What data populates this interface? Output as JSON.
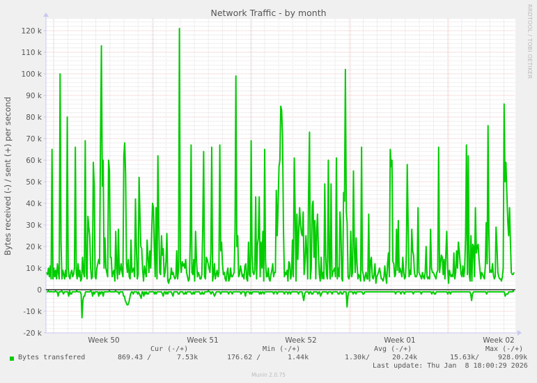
{
  "chart_data": {
    "type": "line",
    "title": "Network Traffic - by month",
    "xlabel": "",
    "ylabel": "Bytes received (-) / sent (+) per second",
    "ylim": [
      -20000,
      125000
    ],
    "yticks": [
      -20000,
      -10000,
      0,
      10000,
      20000,
      30000,
      40000,
      50000,
      60000,
      70000,
      80000,
      90000,
      100000,
      110000,
      120000
    ],
    "ytick_labels": [
      "-20 k",
      "-10 k",
      "0",
      "10 k",
      "20 k",
      "30 k",
      "40 k",
      "50 k",
      "60 k",
      "70 k",
      "80 k",
      "90 k",
      "100 k",
      "110 k",
      "120 k"
    ],
    "xtick_labels": [
      "Week 50",
      "Week 51",
      "Week 52",
      "Week 01",
      "Week 02"
    ],
    "grid": true,
    "legend_position": "bottom",
    "series": [
      {
        "name": "Bytes transfered (sent, +)",
        "color": "#00cc00",
        "values": [
          8,
          7,
          10,
          6,
          11,
          5,
          65,
          5,
          10,
          6,
          9,
          5,
          12,
          8,
          5,
          100,
          22,
          5,
          9,
          7,
          5,
          9,
          6,
          80,
          10,
          6,
          5,
          8,
          9,
          6,
          7,
          10,
          66,
          8,
          5,
          12,
          6,
          9,
          4,
          5,
          15,
          8,
          6,
          69,
          8,
          5,
          34,
          29,
          25,
          10,
          5,
          6,
          59,
          48,
          6,
          5,
          10,
          12,
          14,
          12,
          68,
          113,
          48,
          60,
          10,
          24,
          10,
          8,
          6,
          60,
          55,
          15,
          15,
          6,
          8,
          9,
          4,
          27,
          10,
          5,
          28,
          7,
          9,
          12,
          8,
          6,
          62,
          68,
          54,
          12,
          8,
          14,
          6,
          5,
          23,
          8,
          9,
          10,
          6,
          42,
          20,
          5,
          7,
          52,
          35,
          20,
          19,
          9,
          4,
          11,
          8,
          6,
          23,
          15,
          8,
          18,
          10,
          26,
          40,
          38,
          21,
          6,
          38,
          5,
          62,
          30,
          8,
          7,
          25,
          16,
          19,
          6,
          8,
          13,
          26,
          4,
          3,
          5,
          5,
          10,
          7,
          8,
          6,
          5,
          6,
          18,
          5,
          9,
          121,
          13,
          8,
          13,
          11,
          12,
          10,
          14,
          8,
          6,
          4,
          5,
          22,
          67,
          8,
          7,
          14,
          4,
          27,
          14,
          6,
          8,
          7,
          5,
          5,
          7,
          29,
          64,
          6,
          5,
          15,
          14,
          12,
          10,
          8,
          17,
          66,
          4,
          7,
          12,
          5,
          7,
          9,
          6,
          8,
          67,
          18,
          22,
          12,
          7,
          8,
          5,
          4,
          8,
          10,
          4,
          5,
          10,
          6,
          6,
          7,
          8,
          28,
          99,
          20,
          25,
          6,
          7,
          11,
          9,
          6,
          7,
          5,
          11,
          12,
          5,
          4,
          22,
          7,
          6,
          69,
          16,
          8,
          7,
          9,
          43,
          5,
          21,
          24,
          43,
          6,
          22,
          10,
          27,
          4,
          65,
          14,
          6,
          6,
          10,
          5,
          4,
          7,
          9,
          12,
          6,
          8,
          8,
          46,
          25,
          40,
          57,
          60,
          85,
          83,
          70,
          28,
          6,
          8,
          7,
          9,
          4,
          13,
          12,
          5,
          7,
          23,
          6,
          61,
          35,
          4,
          35,
          14,
          27,
          38,
          30,
          26,
          25,
          36,
          7,
          12,
          25,
          17,
          5,
          46,
          73,
          5,
          10,
          39,
          41,
          15,
          32,
          5,
          28,
          35,
          17,
          7,
          4,
          15,
          5,
          8,
          5,
          49,
          16,
          7,
          5,
          60,
          14,
          5,
          49,
          6,
          8,
          9,
          10,
          6,
          61,
          5,
          10,
          6,
          36,
          28,
          5,
          4,
          45,
          41,
          102,
          36,
          31,
          6,
          5,
          7,
          27,
          6,
          8,
          55,
          19,
          8,
          24,
          12,
          5,
          7,
          6,
          4,
          66,
          9,
          7,
          4,
          6,
          8,
          5,
          5,
          35,
          4,
          13,
          15,
          6,
          5,
          7,
          12,
          3,
          6,
          7,
          8,
          10,
          8,
          5,
          5,
          4,
          6,
          11,
          6,
          3,
          12,
          17,
          6,
          65,
          57,
          60,
          13,
          12,
          6,
          7,
          28,
          9,
          32,
          8,
          10,
          8,
          6,
          15,
          8,
          5,
          6,
          17,
          58,
          30,
          6,
          9,
          7,
          28,
          18,
          16,
          8,
          6,
          6,
          7,
          38,
          8,
          7,
          6,
          5,
          8,
          6,
          5,
          8,
          20,
          6,
          5,
          6,
          5,
          28,
          10,
          8,
          8,
          7,
          6,
          5,
          8,
          9,
          66,
          8,
          12,
          16,
          15,
          7,
          14,
          5,
          16,
          27,
          10,
          3,
          9,
          7,
          6,
          7,
          6,
          17,
          5,
          8,
          18,
          10,
          22,
          18,
          12,
          7,
          6,
          11,
          6,
          10,
          25,
          67,
          7,
          62,
          8,
          4,
          25,
          4,
          21,
          20,
          6,
          38,
          17,
          20,
          21,
          14,
          9,
          5,
          8,
          7,
          6,
          5,
          11,
          31,
          12,
          76,
          27,
          8,
          9,
          8,
          12,
          7,
          5,
          6,
          29,
          20,
          8,
          6,
          5,
          5,
          4,
          6,
          10,
          86,
          50,
          59,
          45,
          32,
          25,
          38,
          23,
          8,
          7,
          7,
          8
        ]
      },
      {
        "name": "Bytes transfered (received, -)",
        "color": "#00cc00",
        "values": [
          -1,
          -1,
          -0.5,
          -1,
          -1,
          -0.8,
          -1,
          -1,
          -1,
          -1,
          -0.5,
          -1,
          -1,
          -3,
          -1,
          -1,
          -1,
          -0.5,
          -1,
          -2,
          -1,
          -1,
          -1,
          -1,
          -1,
          -3,
          -0.5,
          -2,
          -2,
          -1,
          -1,
          -1,
          -1,
          -1,
          -0.5,
          -1,
          -1,
          -1,
          -1,
          -2,
          -13,
          -5,
          -3,
          -3,
          -1,
          -1,
          -1,
          -1,
          -1,
          -1,
          -0.5,
          -1,
          -3,
          -1,
          -2,
          -1,
          -1,
          -1,
          -1,
          -3,
          -1,
          -2,
          -1,
          -1,
          -3,
          -1,
          -1,
          -1,
          -1,
          -1,
          -1,
          -0.5,
          -1,
          -1,
          -1,
          -1,
          -1,
          -1,
          -0.5,
          -1,
          -1,
          -1,
          -2,
          -1,
          -1,
          -1,
          -1,
          -3,
          -3,
          -5,
          -6,
          -7,
          -7,
          -6,
          -4,
          -2,
          -1,
          -1,
          -2,
          -1,
          -1,
          -1,
          -1,
          -2,
          -1,
          -2,
          -3,
          -4,
          -1,
          -1,
          -3,
          -1,
          -2,
          -1,
          -2,
          -2,
          -1,
          -1,
          -1,
          -1,
          -1,
          -1,
          -2,
          -1,
          -2,
          -1,
          -1,
          -1,
          -1,
          -1,
          -1,
          -2,
          -3,
          -1,
          -1,
          -2,
          -1,
          -2,
          -1,
          -1,
          -1,
          -1,
          -2,
          -3,
          -1,
          -1,
          -1,
          -1,
          -1,
          -2,
          -2,
          -1,
          -1,
          -1,
          -1,
          -2,
          -2,
          -1,
          -2,
          -1,
          -1,
          -1,
          -1,
          -1,
          -2,
          -2,
          -1,
          -2,
          -1,
          -1,
          -1,
          -1,
          -1,
          -1,
          -2,
          -2,
          -1,
          -2,
          -2,
          -1,
          -1,
          -1,
          -1,
          -0.5,
          -1,
          -1,
          -2,
          -1,
          -1,
          -2,
          -3,
          -2,
          -1,
          -1,
          -1,
          -1,
          -1,
          -2,
          -1,
          -1,
          -1,
          -1,
          -1,
          -1,
          -1,
          -1,
          -2,
          -1,
          -1,
          -1,
          -2,
          -1,
          -1,
          -1,
          -1,
          -1,
          -1,
          -1,
          -1,
          -1,
          -2,
          -1,
          -1,
          -1,
          -1,
          -3,
          -1,
          -1,
          -1,
          -1,
          -2,
          -1,
          -2,
          -1,
          -1,
          -1,
          -1,
          -1,
          -1,
          -1,
          -1,
          -2,
          -1,
          -2,
          -1,
          -1,
          -2,
          -1,
          -1,
          -1,
          -1,
          -1,
          -1,
          -1,
          -1,
          -1,
          -1,
          -2,
          -1,
          -1,
          -1,
          -2,
          -1,
          -1,
          -1,
          -1,
          -1,
          -1,
          -1,
          -2,
          -1,
          -1,
          -1,
          -2,
          -1,
          -1,
          -2,
          -1,
          -1,
          -1,
          -1,
          -1,
          -1,
          -1,
          -1,
          -2,
          -1,
          -1,
          -1,
          -1,
          -3,
          -5,
          -2,
          -1,
          -1,
          -1,
          -1,
          -2,
          -1,
          -1,
          -2,
          -2,
          -1,
          -1,
          -1,
          -1,
          -1,
          -2,
          -1,
          -1,
          -3,
          -2,
          -1,
          -1,
          -1,
          -1,
          -1,
          -1,
          -2,
          -1,
          -1,
          -1,
          -1,
          -2,
          -1,
          -1,
          -1,
          -1,
          -1,
          -1,
          -2,
          -2,
          -1,
          -1,
          -2,
          -2,
          -1,
          -1,
          -1,
          -1,
          -8,
          -3,
          -1,
          -1,
          -1,
          -1,
          -1,
          -2,
          -1,
          -1,
          -2,
          -1,
          -1,
          -1,
          -1,
          -1,
          -1,
          -1,
          -2,
          -2,
          -1,
          -1,
          -1,
          -1,
          -1,
          -1,
          -1,
          -1,
          -1,
          -1,
          -1,
          -1,
          -1,
          -1,
          -1,
          -1,
          -1,
          -1,
          -1,
          -1,
          -1,
          -1,
          -1,
          -1,
          -1,
          -1,
          -1,
          -1,
          -1,
          -1,
          -1,
          -1,
          -1,
          -1,
          -1,
          -2,
          -1,
          -1,
          -1,
          -1,
          -1,
          -2,
          -1,
          -1,
          -1,
          -2,
          -1,
          -1,
          -1,
          -1,
          -1,
          -1,
          -1,
          -1,
          -1,
          -2,
          -1,
          -1,
          -1,
          -1,
          -1,
          -1,
          -1,
          -1,
          -2,
          -1,
          -1,
          -1,
          -1,
          -1,
          -1,
          -1,
          -1,
          -1,
          -1,
          -1,
          -2,
          -1,
          -1,
          -2,
          -2,
          -1,
          -1,
          -1,
          -1,
          -1,
          -1,
          -1,
          -1,
          -1,
          -1,
          -1,
          -1,
          -1,
          -2,
          -1,
          -1,
          -2,
          -1,
          -1,
          -1,
          -1,
          -1,
          -1,
          -1,
          -1,
          -1,
          -1,
          -1,
          -1,
          -1,
          -1,
          -1,
          -1,
          -1,
          -1,
          -1,
          -1,
          -1,
          -1,
          -2,
          -5,
          -2,
          -1,
          -1,
          -1,
          -1,
          -1,
          -1,
          -1,
          -1,
          -1,
          -1,
          -1,
          -1,
          -1,
          -1,
          -1,
          -2,
          -1,
          -1,
          -1,
          -1,
          -1,
          -1,
          -1,
          -1,
          -1,
          -1,
          -1,
          -1,
          -1,
          -1,
          -1,
          -1,
          -1,
          -1,
          -1,
          -1,
          -3,
          -2,
          -2,
          -2,
          -1,
          -1,
          -1,
          -1,
          -1,
          -0.5,
          -1
        ]
      }
    ],
    "y_unit_note": "values in thousands (k)"
  },
  "title": "Network Traffic - by month",
  "side_credit": "RRDTOOL / TOBI OETIKER",
  "ylabel": "Bytes received (-) / sent (+) per second",
  "legend": {
    "headers": {
      "cur": "Cur (-/+)",
      "min": "Min (-/+)",
      "avg": "Avg (-/+)",
      "max": "Max (-/+)"
    },
    "series_label": "Bytes transfered",
    "color": "#00cc00",
    "cur_recv": "869.43 /",
    "cur_sent": "7.53k",
    "min_recv": "176.62 /",
    "min_sent": "1.44k",
    "avg_recv": "1.30k/",
    "avg_sent": "20.24k",
    "max_recv": "15.63k/",
    "max_sent": "928.09k",
    "last_update": "Last update: Thu Jan  8 18:00:29 2026"
  },
  "footer": "Munin 2.0.75"
}
